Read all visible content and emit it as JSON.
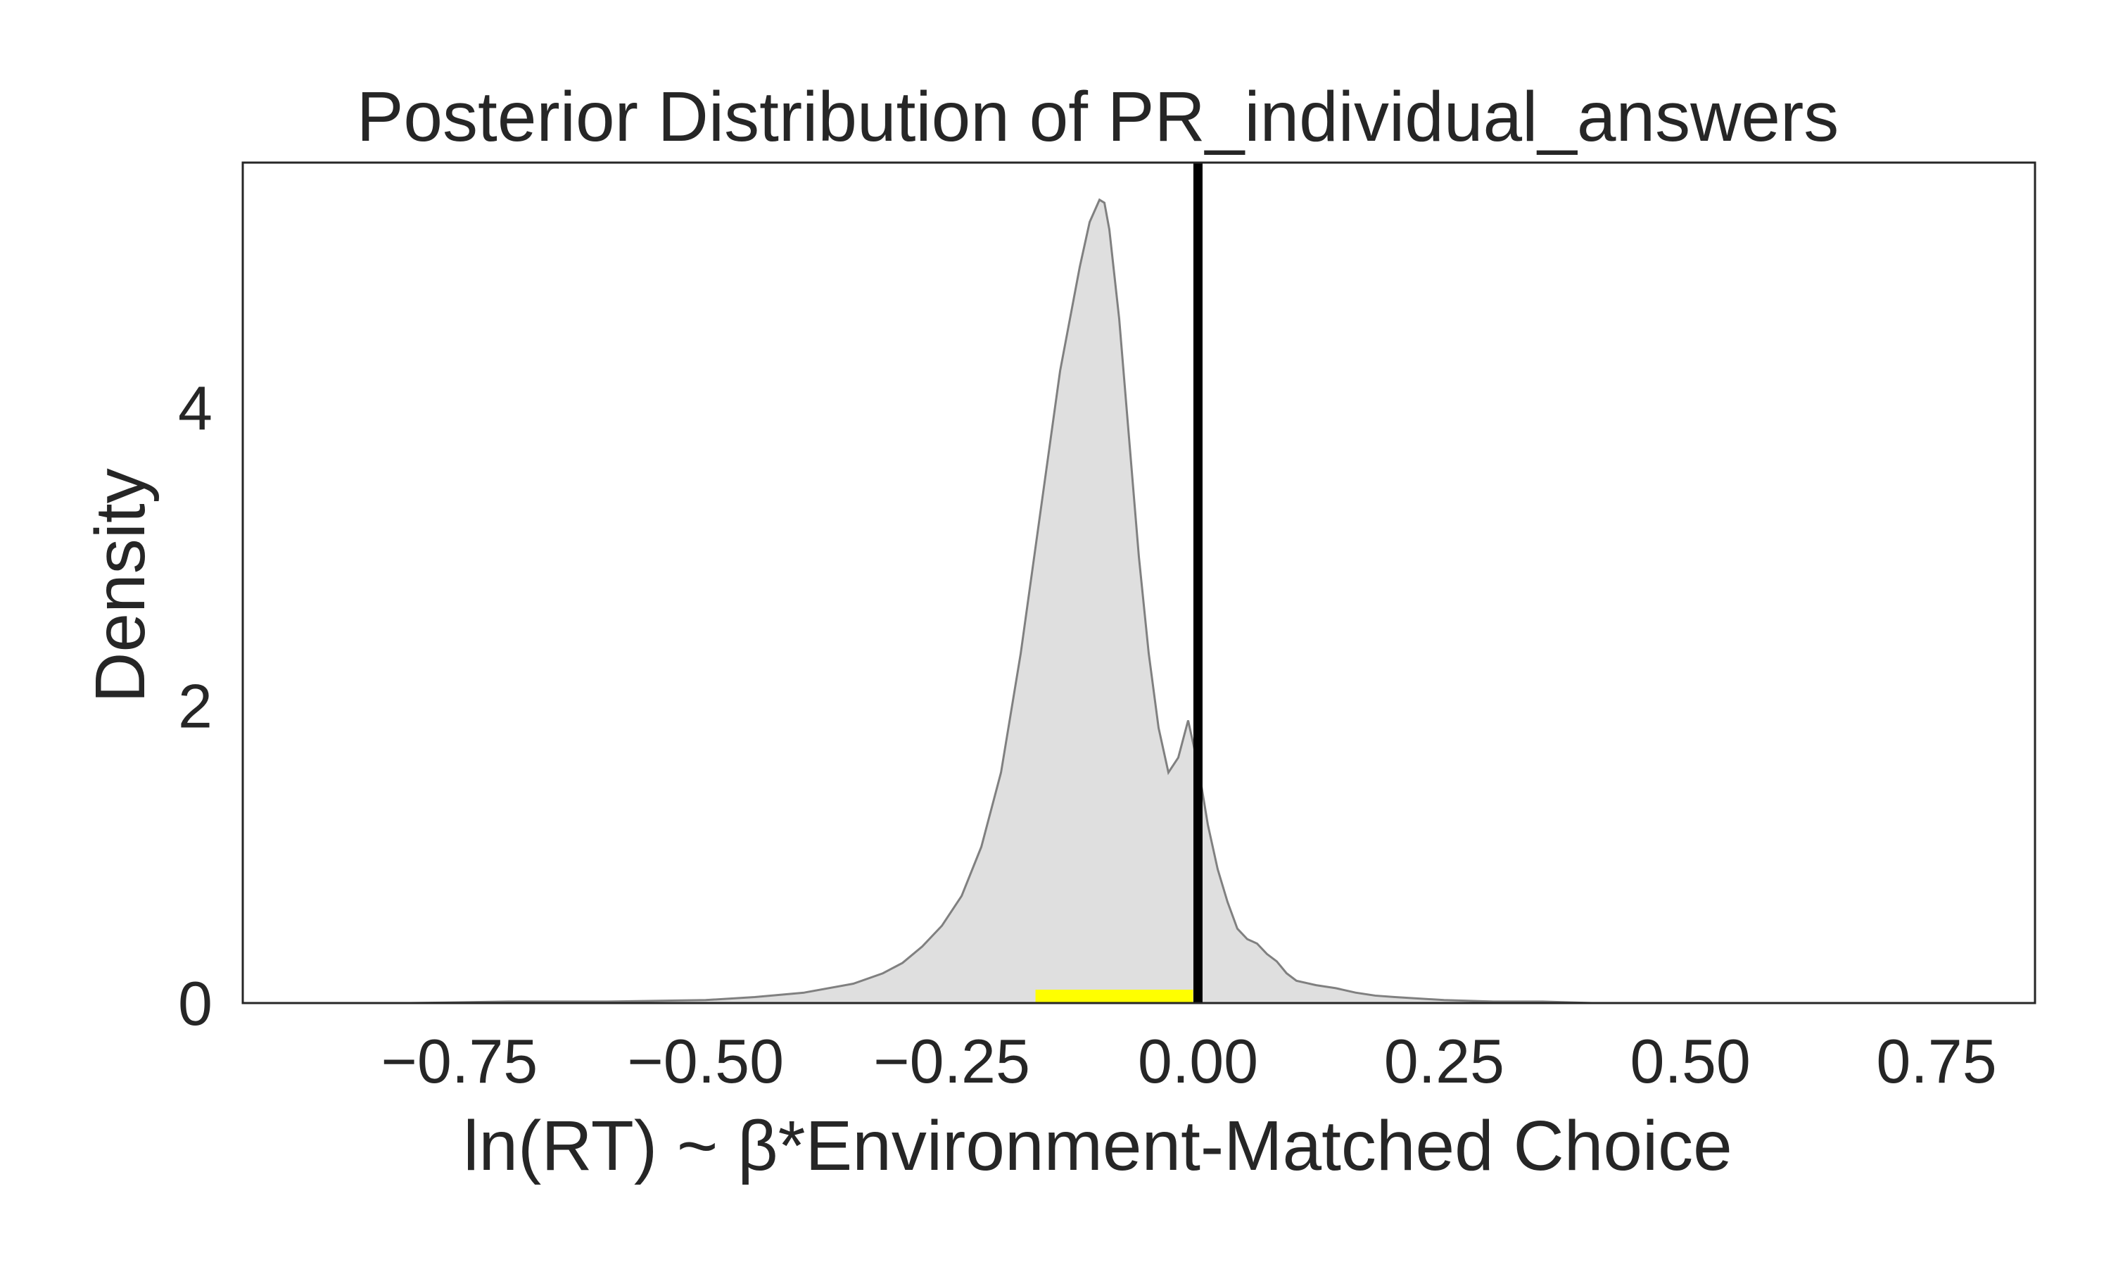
{
  "chart_data": {
    "type": "area",
    "title": "Posterior Distribution of PR_individual_answers",
    "xlabel": "ln(RT) ~ β*Environment-Matched Choice",
    "ylabel": "Density",
    "xlim": [
      -0.97,
      0.85
    ],
    "ylim": [
      0,
      5.65
    ],
    "x_ticks": [
      -0.75,
      -0.5,
      -0.25,
      0.0,
      0.25,
      0.5,
      0.75
    ],
    "x_tick_labels": [
      "−0.75",
      "−0.50",
      "−0.25",
      "0.00",
      "0.25",
      "0.50",
      "0.75"
    ],
    "y_ticks": [
      0,
      2,
      4
    ],
    "y_tick_labels": [
      "0",
      "2",
      "4"
    ],
    "grid": false,
    "legend": "none",
    "density": {
      "x": [
        -0.95,
        -0.8,
        -0.7,
        -0.6,
        -0.5,
        -0.45,
        -0.4,
        -0.35,
        -0.32,
        -0.3,
        -0.28,
        -0.26,
        -0.24,
        -0.22,
        -0.2,
        -0.18,
        -0.16,
        -0.14,
        -0.12,
        -0.11,
        -0.1,
        -0.095,
        -0.09,
        -0.08,
        -0.07,
        -0.06,
        -0.05,
        -0.04,
        -0.03,
        -0.02,
        -0.01,
        0.0,
        0.01,
        0.02,
        0.03,
        0.04,
        0.05,
        0.06,
        0.07,
        0.08,
        0.09,
        0.1,
        0.12,
        0.14,
        0.16,
        0.18,
        0.2,
        0.25,
        0.3,
        0.35,
        0.4,
        0.5,
        0.6,
        0.7,
        0.8
      ],
      "y": [
        0.0,
        0.0,
        0.01,
        0.01,
        0.02,
        0.04,
        0.07,
        0.13,
        0.2,
        0.27,
        0.38,
        0.52,
        0.72,
        1.05,
        1.55,
        2.35,
        3.3,
        4.25,
        4.95,
        5.25,
        5.4,
        5.38,
        5.2,
        4.6,
        3.8,
        3.0,
        2.35,
        1.85,
        1.55,
        1.65,
        1.9,
        1.6,
        1.2,
        0.9,
        0.68,
        0.5,
        0.43,
        0.4,
        0.33,
        0.28,
        0.2,
        0.15,
        0.12,
        0.1,
        0.07,
        0.05,
        0.04,
        0.02,
        0.01,
        0.01,
        0.0,
        0.0,
        0.0,
        0.0,
        0.0
      ],
      "fill": "#dfdfdf",
      "stroke": "#808080"
    },
    "reference_line": {
      "x": 0.0,
      "color": "#000000"
    },
    "interval": {
      "x_start": -0.165,
      "x_end": -0.005,
      "color": "#ffff00"
    },
    "frame_color": "#262626"
  }
}
